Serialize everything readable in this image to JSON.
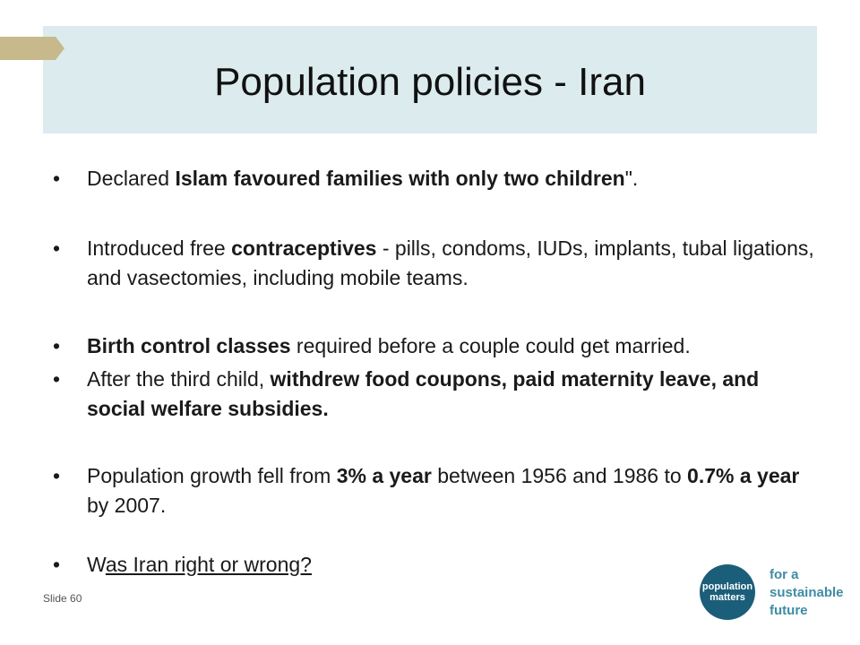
{
  "slide": {
    "title": "Population policies - Iran",
    "slide_number": "Slide 60",
    "bullet_char": "•",
    "colors": {
      "title_band": "#dcebed",
      "accent_arrow": "#c8b98c",
      "logo": "#1b5e7a",
      "tagline": "#3d8ca5"
    }
  },
  "bullets": [
    {
      "segments": [
        {
          "text": "Declared ",
          "bold": false
        },
        {
          "text": "Islam favoured families with only two children",
          "bold": true
        },
        {
          "text": "\".",
          "bold": false
        }
      ]
    },
    {
      "segments": [
        {
          "text": "Introduced free ",
          "bold": false
        },
        {
          "text": "contraceptives",
          "bold": true
        },
        {
          "text": " - pills, condoms, IUDs, implants, tubal ligations, and vasectomies, including mobile teams.",
          "bold": false
        }
      ]
    },
    {
      "segments": [
        {
          "text": "Birth control classes",
          "bold": true
        },
        {
          "text": " required before a couple could get married.",
          "bold": false
        }
      ]
    },
    {
      "segments": [
        {
          "text": "After the third child, ",
          "bold": false
        },
        {
          "text": "withdrew food coupons, paid maternity leave, and social welfare subsidies.",
          "bold": true
        }
      ]
    },
    {
      "segments": [
        {
          "text": "Population growth fell from ",
          "bold": false
        },
        {
          "text": "3% a year",
          "bold": true
        },
        {
          "text": " between 1956 and 1986 to ",
          "bold": false
        },
        {
          "text": "0.7% a year",
          "bold": true
        },
        {
          "text": " by 2007.",
          "bold": false
        }
      ]
    },
    {
      "segments": [
        {
          "text": "W",
          "bold": false
        },
        {
          "text": "as Iran right or wrong?",
          "bold": false,
          "underline": true
        }
      ]
    }
  ],
  "logo": {
    "line1": "population",
    "line2": "matters",
    "tagline": [
      "for a",
      "sustainable",
      "future"
    ]
  }
}
